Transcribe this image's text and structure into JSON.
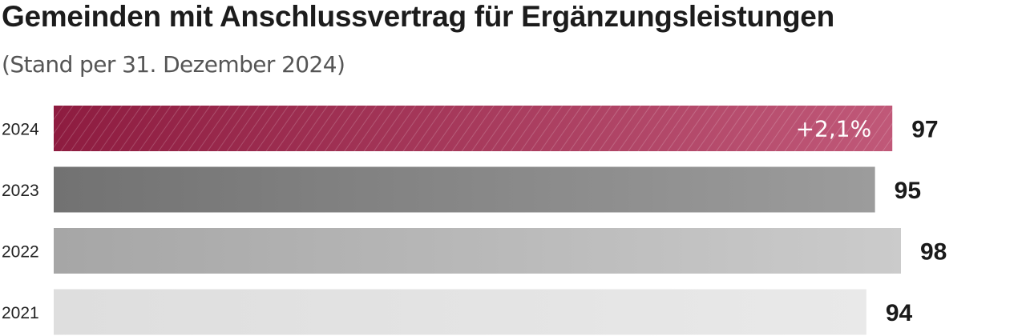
{
  "chart_data": {
    "type": "bar",
    "orientation": "horizontal",
    "title": "Gemeinden mit Anschlussvertrag für Ergänzungsleistungen",
    "subtitle": "(Stand per 31. Dezember 2024)",
    "categories": [
      "2024",
      "2023",
      "2022",
      "2021"
    ],
    "values": [
      97,
      95,
      98,
      94
    ],
    "value_labels": [
      "97",
      "95",
      "98",
      "94"
    ],
    "annotation": {
      "category": "2024",
      "text": "+2,1%"
    },
    "colors": {
      "2024": {
        "from": "#8e1c40",
        "to": "#c05878"
      },
      "2023": {
        "from": "#727272",
        "to": "#9c9c9c"
      },
      "2022": {
        "from": "#a6a6a6",
        "to": "#cbcbcb"
      },
      "2021": {
        "from": "#dedede",
        "to": "#e9e9e9"
      }
    },
    "xlim": [
      0,
      98
    ],
    "grid": false,
    "legend": "none"
  }
}
